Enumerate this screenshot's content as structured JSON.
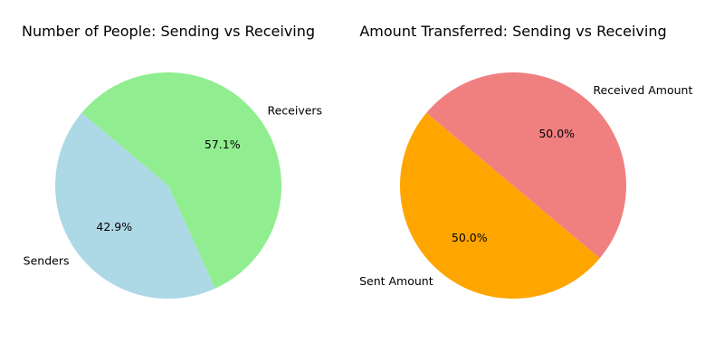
{
  "chart_data": [
    {
      "type": "pie",
      "title": "Number of People: Sending vs Receiving",
      "categories": [
        "Senders",
        "Receivers"
      ],
      "values": [
        42.9,
        57.1
      ],
      "percent_labels": [
        "42.9%",
        "57.1%"
      ],
      "colors": [
        "#add8e6",
        "#90ee90"
      ],
      "start_angle_deg": 140,
      "legend": "none"
    },
    {
      "type": "pie",
      "title": "Amount Transferred: Sending vs Receiving",
      "categories": [
        "Sent Amount",
        "Received Amount"
      ],
      "values": [
        50.0,
        50.0
      ],
      "percent_labels": [
        "50.0%",
        "50.0%"
      ],
      "colors": [
        "#ffa500",
        "#f08080"
      ],
      "start_angle_deg": 140,
      "legend": "none"
    }
  ]
}
